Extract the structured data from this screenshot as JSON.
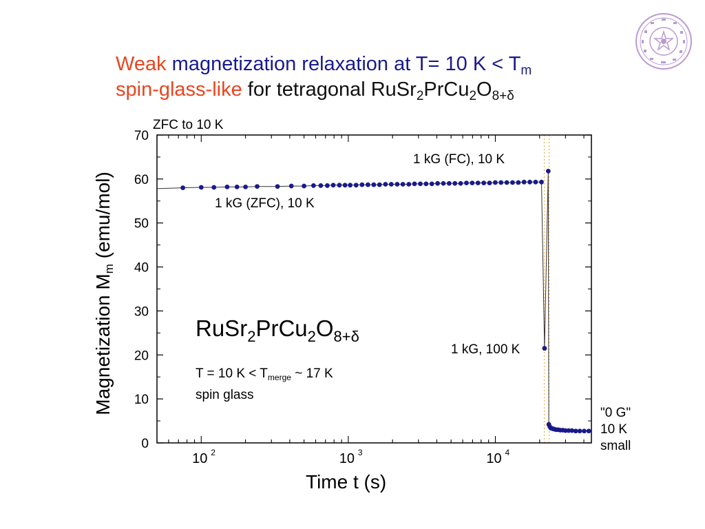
{
  "title": {
    "line1_accent": "Weak",
    "line1_main": "magnetization relaxation at T= 10 K < T",
    "line1_sub": "m",
    "line2_accent": "spin-glass-like",
    "line2_main": "for tetragonal RuSr",
    "line2_sub1": "2",
    "line2_mid1": "PrCu",
    "line2_sub2": "2",
    "line2_mid2": "O",
    "line2_sub3": "8+δ"
  },
  "colors": {
    "accent": "#e8451f",
    "title_blue": "#1a1a8c",
    "marker": "#1a1a8c",
    "guide": "#f0a030",
    "seal": "#b99ad0"
  },
  "annotations": {
    "zfc_top": "ZFC to 10 K",
    "fc": "1 kG (FC), 10 K",
    "zfc": "1 kG (ZFC), 10 K",
    "k100": "1 kG, 100 K",
    "zero_g_1": "\"0 G\"",
    "zero_g_2": "10 K",
    "zero_g_3": "small"
  },
  "formula": {
    "a": "RuSr",
    "s1": "2",
    "b": "PrCu",
    "s2": "2",
    "c": "O",
    "s3": "8+δ",
    "cond_a": "T = 10 K < T",
    "cond_sub": "merge",
    "cond_b": " ~ 17 K",
    "cond_line2": "spin glass"
  },
  "chart_data": {
    "type": "scatter",
    "xlabel": "Time  t (s)",
    "ylabel_main": "Magnetization  M",
    "ylabel_sub": "m",
    "ylabel_unit": "  (emu/mol)",
    "xscale": "log",
    "xlim": [
      50,
      45000
    ],
    "ylim": [
      0,
      70
    ],
    "yticks": [
      0,
      10,
      20,
      30,
      40,
      50,
      60,
      70
    ],
    "xticks": [
      {
        "value": 100,
        "base": "10",
        "exp": "2"
      },
      {
        "value": 1000,
        "base": "10",
        "exp": "3"
      },
      {
        "value": 10000,
        "base": "10",
        "exp": "4"
      }
    ],
    "guides_x": [
      21500,
      23200
    ],
    "series": [
      {
        "points": [
          [
            50,
            57.8
          ],
          [
            75,
            58.0
          ],
          [
            100,
            58.1
          ],
          [
            122,
            58.1
          ],
          [
            150,
            58.2
          ],
          [
            175,
            58.2
          ],
          [
            200,
            58.2
          ],
          [
            240,
            58.3
          ],
          [
            330,
            58.3
          ],
          [
            410,
            58.4
          ],
          [
            500,
            58.4
          ],
          [
            580,
            58.5
          ],
          [
            650,
            58.5
          ],
          [
            720,
            58.5
          ],
          [
            790,
            58.6
          ],
          [
            870,
            58.6
          ],
          [
            950,
            58.6
          ],
          [
            1030,
            58.6
          ],
          [
            1130,
            58.6
          ],
          [
            1240,
            58.7
          ],
          [
            1360,
            58.7
          ],
          [
            1490,
            58.7
          ],
          [
            1630,
            58.7
          ],
          [
            1790,
            58.8
          ],
          [
            1960,
            58.8
          ],
          [
            2150,
            58.8
          ],
          [
            2350,
            58.8
          ],
          [
            2580,
            58.8
          ],
          [
            2820,
            58.9
          ],
          [
            3090,
            58.9
          ],
          [
            3380,
            58.9
          ],
          [
            3700,
            58.9
          ],
          [
            4050,
            59.0
          ],
          [
            4430,
            59.0
          ],
          [
            4850,
            59.0
          ],
          [
            5310,
            59.0
          ],
          [
            5810,
            59.0
          ],
          [
            6360,
            59.1
          ],
          [
            6960,
            59.1
          ],
          [
            7620,
            59.1
          ],
          [
            8340,
            59.1
          ],
          [
            9130,
            59.1
          ],
          [
            9990,
            59.2
          ],
          [
            10930,
            59.2
          ],
          [
            11960,
            59.2
          ],
          [
            13090,
            59.2
          ],
          [
            14330,
            59.2
          ],
          [
            15680,
            59.3
          ],
          [
            17160,
            59.3
          ],
          [
            18780,
            59.3
          ],
          [
            20600,
            59.3
          ],
          [
            21600,
            21.5
          ],
          [
            22900,
            61.8
          ],
          [
            23100,
            4.2
          ],
          [
            23450,
            3.7
          ],
          [
            23800,
            3.4
          ],
          [
            24200,
            3.3
          ],
          [
            24700,
            3.2
          ],
          [
            25300,
            3.1
          ],
          [
            26000,
            3.0
          ],
          [
            26800,
            3.0
          ],
          [
            27700,
            2.9
          ],
          [
            28800,
            2.9
          ],
          [
            30000,
            2.8
          ],
          [
            31500,
            2.8
          ],
          [
            33200,
            2.8
          ],
          [
            35200,
            2.7
          ],
          [
            37500,
            2.7
          ],
          [
            40200,
            2.7
          ],
          [
            43200,
            2.7
          ]
        ]
      }
    ]
  }
}
